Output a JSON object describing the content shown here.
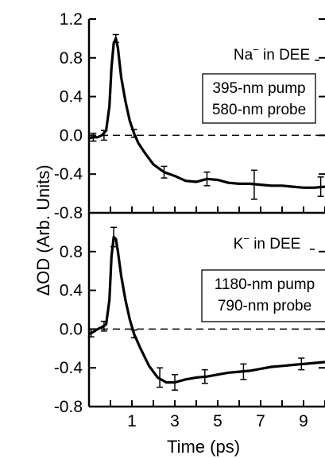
{
  "chart_data": [
    {
      "type": "line",
      "panel": "top",
      "ylabel": "ΔOD (Arb. Units)",
      "xlabel": "Time (ps)",
      "ylim": [
        -0.8,
        1.2
      ],
      "xlim": [
        -1,
        10
      ],
      "yticks": [
        1.2,
        0.8,
        0.4,
        0.0,
        -0.4,
        -0.8
      ],
      "ytick_labels": [
        "1.2",
        "0.8",
        "0.4",
        "0.0",
        "-0.4",
        "-0.8"
      ],
      "ion_label": "Na",
      "ion_charge": "−",
      "solvent_label": " in DEE",
      "box_lines": [
        "395-nm pump",
        "580-nm probe"
      ],
      "zero_line": "dashed",
      "series": [
        {
          "x": [
            -1.0,
            -0.8,
            -0.6,
            -0.4,
            -0.2,
            -0.05,
            0.05,
            0.15,
            0.25,
            0.35,
            0.5,
            0.7,
            0.9,
            1.1,
            1.3,
            1.6,
            2.0,
            2.5,
            3.0,
            3.5,
            4.0,
            4.5,
            5.0,
            5.5,
            6.0,
            6.5,
            7.0,
            7.5,
            8.0,
            8.5,
            9.0,
            9.5,
            10.0
          ],
          "y": [
            -0.03,
            -0.02,
            -0.02,
            0.0,
            0.05,
            0.3,
            0.7,
            0.95,
            1.0,
            0.9,
            0.6,
            0.35,
            0.15,
            0.02,
            -0.08,
            -0.18,
            -0.3,
            -0.38,
            -0.42,
            -0.47,
            -0.48,
            -0.45,
            -0.46,
            -0.49,
            -0.5,
            -0.5,
            -0.51,
            -0.52,
            -0.52,
            -0.53,
            -0.54,
            -0.54,
            -0.53
          ]
        }
      ],
      "error_bars": [
        {
          "x": -0.8,
          "y": -0.02,
          "err": 0.04
        },
        {
          "x": -0.3,
          "y": 0.0,
          "err": 0.05
        },
        {
          "x": 0.25,
          "y": 1.0,
          "err": 0.04
        },
        {
          "x": 1.1,
          "y": 0.02,
          "err": 0.04
        },
        {
          "x": 2.5,
          "y": -0.38,
          "err": 0.06
        },
        {
          "x": 4.5,
          "y": -0.45,
          "err": 0.07
        },
        {
          "x": 6.7,
          "y": -0.51,
          "err": 0.15
        },
        {
          "x": 9.8,
          "y": -0.53,
          "err": 0.1
        }
      ]
    },
    {
      "type": "line",
      "panel": "bottom",
      "ylabel": "ΔOD (Arb. Units)",
      "xlabel": "Time (ps)",
      "ylim": [
        -0.8,
        1.2
      ],
      "xlim": [
        -1,
        10
      ],
      "yticks": [
        0.8,
        0.4,
        0.0,
        -0.4,
        -0.8
      ],
      "ytick_labels": [
        "0.8",
        "0.4",
        "0.0",
        "-0.4",
        "-0.8"
      ],
      "xticks": [
        1,
        3,
        5,
        7,
        9
      ],
      "xtick_labels": [
        "1",
        "3",
        "5",
        "7",
        "9"
      ],
      "ion_label": "K",
      "ion_charge": "−",
      "solvent_label": " in DEE",
      "box_lines": [
        "1180-nm pump",
        "790-nm probe"
      ],
      "zero_line": "dashed",
      "series": [
        {
          "x": [
            -1.0,
            -0.8,
            -0.6,
            -0.4,
            -0.2,
            -0.05,
            0.05,
            0.15,
            0.25,
            0.35,
            0.5,
            0.7,
            0.9,
            1.1,
            1.4,
            1.8,
            2.2,
            2.6,
            3.0,
            3.5,
            4.0,
            4.5,
            5.0,
            5.5,
            6.0,
            6.5,
            7.0,
            7.5,
            8.0,
            8.5,
            9.0,
            9.5,
            10.0
          ],
          "y": [
            -0.05,
            -0.03,
            0.0,
            0.02,
            0.05,
            0.3,
            0.75,
            0.95,
            0.93,
            0.8,
            0.55,
            0.3,
            0.1,
            -0.05,
            -0.2,
            -0.38,
            -0.5,
            -0.55,
            -0.55,
            -0.52,
            -0.5,
            -0.49,
            -0.47,
            -0.45,
            -0.44,
            -0.43,
            -0.41,
            -0.39,
            -0.38,
            -0.37,
            -0.36,
            -0.35,
            -0.34
          ]
        }
      ],
      "error_bars": [
        {
          "x": -0.9,
          "y": -0.04,
          "err": 0.04
        },
        {
          "x": -0.3,
          "y": 0.03,
          "err": 0.05
        },
        {
          "x": 0.15,
          "y": 0.95,
          "err": 0.1
        },
        {
          "x": 1.1,
          "y": -0.05,
          "err": 0.04
        },
        {
          "x": 2.3,
          "y": -0.5,
          "err": 0.1
        },
        {
          "x": 3.0,
          "y": -0.55,
          "err": 0.08
        },
        {
          "x": 4.4,
          "y": -0.49,
          "err": 0.07
        },
        {
          "x": 6.2,
          "y": -0.44,
          "err": 0.08
        },
        {
          "x": 8.9,
          "y": -0.36,
          "err": 0.06
        }
      ]
    }
  ]
}
